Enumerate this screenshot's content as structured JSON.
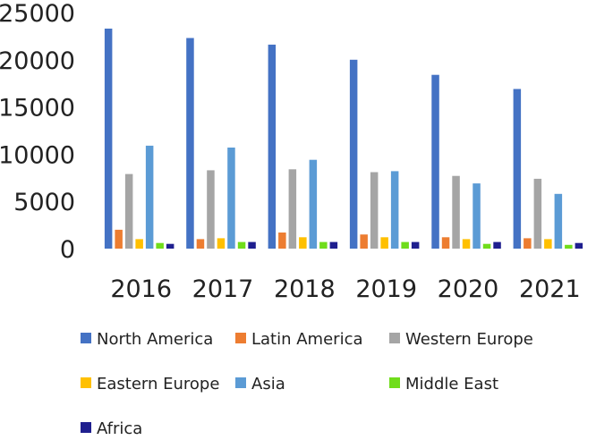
{
  "chart_data": {
    "type": "bar",
    "title": "",
    "xlabel": "",
    "ylabel": "",
    "categories": [
      "2016",
      "2017",
      "2018",
      "2019",
      "2020",
      "2021"
    ],
    "ylim": [
      0,
      25000
    ],
    "yticks": [
      0,
      5000,
      10000,
      15000,
      20000,
      25000
    ],
    "grid": false,
    "legend_position": "bottom",
    "series": [
      {
        "name": "North America",
        "color": "#4472C4",
        "values": [
          23300,
          22300,
          21600,
          20000,
          18400,
          16900
        ]
      },
      {
        "name": "Latin America",
        "color": "#ED7D31",
        "values": [
          2000,
          1000,
          1700,
          1500,
          1200,
          1100
        ]
      },
      {
        "name": "Western Europe",
        "color": "#A5A5A5",
        "values": [
          7900,
          8300,
          8400,
          8100,
          7700,
          7400
        ]
      },
      {
        "name": "Eastern Europe",
        "color": "#FFC000",
        "values": [
          1000,
          1100,
          1200,
          1200,
          1000,
          1000
        ]
      },
      {
        "name": "Asia",
        "color": "#5B9BD5",
        "values": [
          10900,
          10700,
          9400,
          8200,
          6900,
          5800
        ]
      },
      {
        "name": "Middle East",
        "color": "#70DD1B",
        "values": [
          600,
          700,
          700,
          700,
          500,
          400
        ]
      },
      {
        "name": "Africa",
        "color": "#1F1F8F",
        "values": [
          500,
          700,
          700,
          700,
          700,
          600
        ]
      }
    ]
  }
}
